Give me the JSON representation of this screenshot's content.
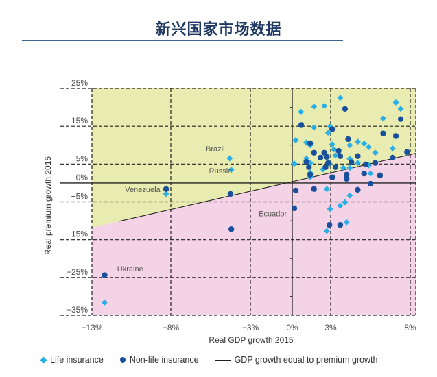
{
  "page": {
    "title": "新兴国家市场数据"
  },
  "chart_data": {
    "type": "scatter",
    "title": "新兴国家市场数据",
    "xlabel": "Real GDP growth 2015",
    "ylabel": "Real premium growth 2015",
    "xlim": [
      -13,
      8
    ],
    "ylim": [
      -35,
      25
    ],
    "x_ticks": [
      -13,
      -8,
      -3,
      0,
      3,
      8
    ],
    "x_tick_labels": [
      "−13%",
      "−8%",
      "−3%",
      "0%",
      "3%",
      "8%"
    ],
    "y_ticks": [
      25,
      15,
      5,
      0,
      -5,
      -15,
      -25,
      -35
    ],
    "y_tick_labels": [
      "25%",
      "15%",
      "5%",
      "0%",
      "−5%",
      "−15%",
      "−25%",
      "−35%"
    ],
    "grid": true,
    "regions": {
      "above_line_color": "#e8ecb0",
      "below_line_color": "#f5d3e6"
    },
    "reference_line": {
      "name": "GDP growth equal to premium growth",
      "from": [
        -13,
        -11.8
      ],
      "to": [
        8,
        7.5
      ],
      "color": "#222222"
    },
    "annotations": [
      {
        "text": "Brazil",
        "x": -5.8,
        "y": 8.3
      },
      {
        "text": "Russia",
        "x": -5.6,
        "y": 2.5
      },
      {
        "text": "Venezuela",
        "x": -10.9,
        "y": -2.4
      },
      {
        "text": "Ecuador",
        "x": -2.4,
        "y": -8.8
      },
      {
        "text": "Ukraine",
        "x": -11.4,
        "y": -23.4
      }
    ],
    "legend_position": "bottom",
    "series": [
      {
        "name": "Life insurance",
        "marker": "diamond",
        "color": "#29aee6",
        "points": [
          [
            -4.3,
            6.5
          ],
          [
            -4.2,
            3.5
          ],
          [
            -8.3,
            -2.9
          ],
          [
            -12.2,
            -31.6
          ],
          [
            0.68,
            18.8
          ],
          [
            1.7,
            20.2
          ],
          [
            2.5,
            20.4
          ],
          [
            3.6,
            22.5
          ],
          [
            6.3,
            17.1
          ],
          [
            7.1,
            21.3
          ],
          [
            7.4,
            19.6
          ],
          [
            1.7,
            14.7
          ],
          [
            2.95,
            14.9
          ],
          [
            2.8,
            13.3
          ],
          [
            0.27,
            11.3
          ],
          [
            1.1,
            10.7
          ],
          [
            1.4,
            10.0
          ],
          [
            3.1,
            10.2
          ],
          [
            4.2,
            10.0
          ],
          [
            4.7,
            10.9
          ],
          [
            5.1,
            10.4
          ],
          [
            5.4,
            9.5
          ],
          [
            5.8,
            8.0
          ],
          [
            6.9,
            9.1
          ],
          [
            7.8,
            8.0
          ],
          [
            3.2,
            8.9
          ],
          [
            3.3,
            7.3
          ],
          [
            1.1,
            6.5
          ],
          [
            4.2,
            6.4
          ],
          [
            0.16,
            5.1
          ],
          [
            1.4,
            5.3
          ],
          [
            2.4,
            3.6
          ],
          [
            3.8,
            4.0
          ],
          [
            4.2,
            4.0
          ],
          [
            4.7,
            5.3
          ],
          [
            2.9,
            5.1
          ],
          [
            1.4,
            2.7
          ],
          [
            1.4,
            1.6
          ],
          [
            5.5,
            2.5
          ],
          [
            5.4,
            4.7
          ],
          [
            2.7,
            -1.6
          ],
          [
            4.2,
            -3.3
          ],
          [
            3.9,
            -5.1
          ],
          [
            3.6,
            -6.0
          ],
          [
            2.95,
            -6.9
          ],
          [
            4.0,
            -10.4
          ],
          [
            2.7,
            -12.7
          ]
        ]
      },
      {
        "name": "Non-life insurance",
        "marker": "circle",
        "color": "#1a4f9c",
        "points": [
          [
            -4.25,
            -2.9
          ],
          [
            -4.2,
            -12.2
          ],
          [
            -8.3,
            -1.6
          ],
          [
            -12.2,
            -24.4
          ],
          [
            3.9,
            19.6
          ],
          [
            0.7,
            15.3
          ],
          [
            7.4,
            16.9
          ],
          [
            6.3,
            13.1
          ],
          [
            7.1,
            12.4
          ],
          [
            4.1,
            11.6
          ],
          [
            3.1,
            14.2
          ],
          [
            1.4,
            10.5
          ],
          [
            1.7,
            8.0
          ],
          [
            2.5,
            8.0
          ],
          [
            2.2,
            6.7
          ],
          [
            2.7,
            6.9
          ],
          [
            3.5,
            8.5
          ],
          [
            3.6,
            7.1
          ],
          [
            4.7,
            7.1
          ],
          [
            1.1,
            5.6
          ],
          [
            2.8,
            5.3
          ],
          [
            2.6,
            4.2
          ],
          [
            3.3,
            4.2
          ],
          [
            4.3,
            5.5
          ],
          [
            5.2,
            4.9
          ],
          [
            5.8,
            5.3
          ],
          [
            6.9,
            6.7
          ],
          [
            7.8,
            8.2
          ],
          [
            1.3,
            4.2
          ],
          [
            1.4,
            2.2
          ],
          [
            4.0,
            2.2
          ],
          [
            5.1,
            2.5
          ],
          [
            6.1,
            2.0
          ],
          [
            3.1,
            1.5
          ],
          [
            4.0,
            1.1
          ],
          [
            5.5,
            -0.2
          ],
          [
            0.27,
            -2.0
          ],
          [
            1.7,
            -1.6
          ],
          [
            4.7,
            -1.8
          ],
          [
            0.16,
            -6.7
          ],
          [
            2.9,
            -11.1
          ],
          [
            3.6,
            -11.1
          ]
        ]
      }
    ]
  },
  "legend": {
    "life": "Life insurance",
    "nonlife": "Non-life insurance",
    "line": "GDP growth equal to premium growth"
  }
}
